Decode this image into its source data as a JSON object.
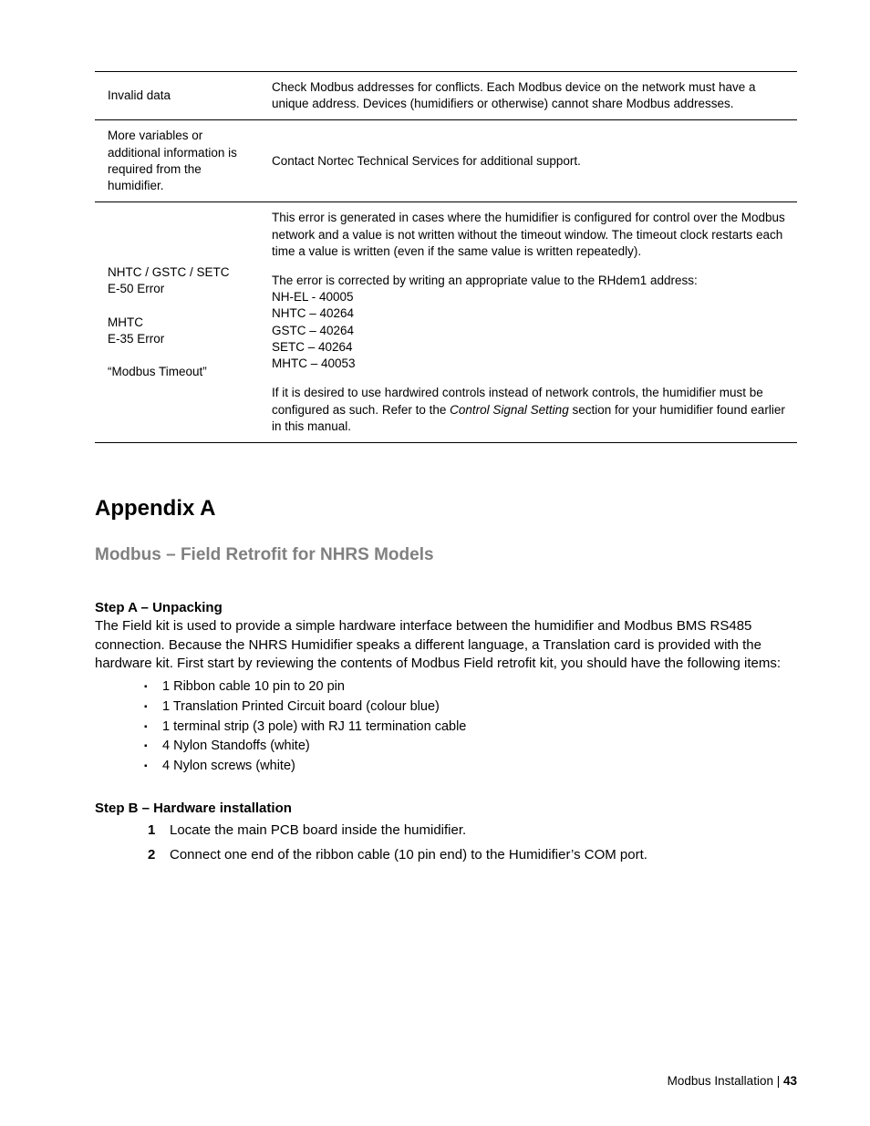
{
  "table": {
    "rows": [
      {
        "left": "Invalid data",
        "right": "Check Modbus addresses for conflicts.  Each Modbus device on the network must have a unique address.  Devices (humidifiers or otherwise) cannot share Modbus addresses."
      },
      {
        "left": "More variables or additional information is required from the humidifier.",
        "right": "Contact Nortec Technical Services for additional support."
      }
    ],
    "row3": {
      "left": {
        "block1a": "NHTC / GSTC / SETC",
        "block1b": "E-50 Error",
        "block2a": "MHTC",
        "block2b": "E-35 Error",
        "block3": "“Modbus Timeout”"
      },
      "right": {
        "p1": "This error is generated in cases where the humidifier is configured for control over the Modbus network and a value is not written without the timeout window.  The timeout clock restarts each time a value is written (even if the same value is written repeatedly).",
        "p2a": "The error is corrected by writing an appropriate value to the RHdem1 address:",
        "l1": "NH-EL - 40005",
        "l2": "NHTC – 40264",
        "l3": "GSTC – 40264",
        "l4": "SETC – 40264",
        "l5": "MHTC – 40053",
        "p3a": "If it is desired to use hardwired controls instead of network controls, the humidifier must be configured as such.   Refer to the ",
        "p3i": "Control Signal Setting",
        "p3b": " section for your humidifier found earlier in this manual."
      }
    }
  },
  "appendix": {
    "title": "Appendix A",
    "subhead": "Modbus – Field Retrofit for NHRS Models",
    "stepA": {
      "label": "Step A – Unpacking",
      "body": "The Field kit is used to provide a simple hardware interface between the humidifier and Modbus BMS RS485 connection. Because the NHRS Humidifier speaks a different language, a Translation card is provided with the hardware kit. First start by reviewing the contents of Modbus Field retrofit kit, you should have the following items:",
      "items": [
        "1 Ribbon cable 10 pin to 20 pin",
        "1 Translation Printed Circuit board (colour blue)",
        "1 terminal strip (3 pole) with RJ 11 termination cable",
        "4 Nylon Standoffs (white)",
        "4 Nylon screws (white)"
      ]
    },
    "stepB": {
      "label": "Step B – Hardware installation",
      "steps": [
        {
          "n": "1",
          "t": "Locate the main PCB board inside the humidifier."
        },
        {
          "n": "2",
          "t": "Connect one end of the ribbon cable (10 pin end) to the Humidifier’s COM port."
        }
      ]
    }
  },
  "footer": {
    "label": "Modbus Installation | ",
    "page": "43"
  }
}
